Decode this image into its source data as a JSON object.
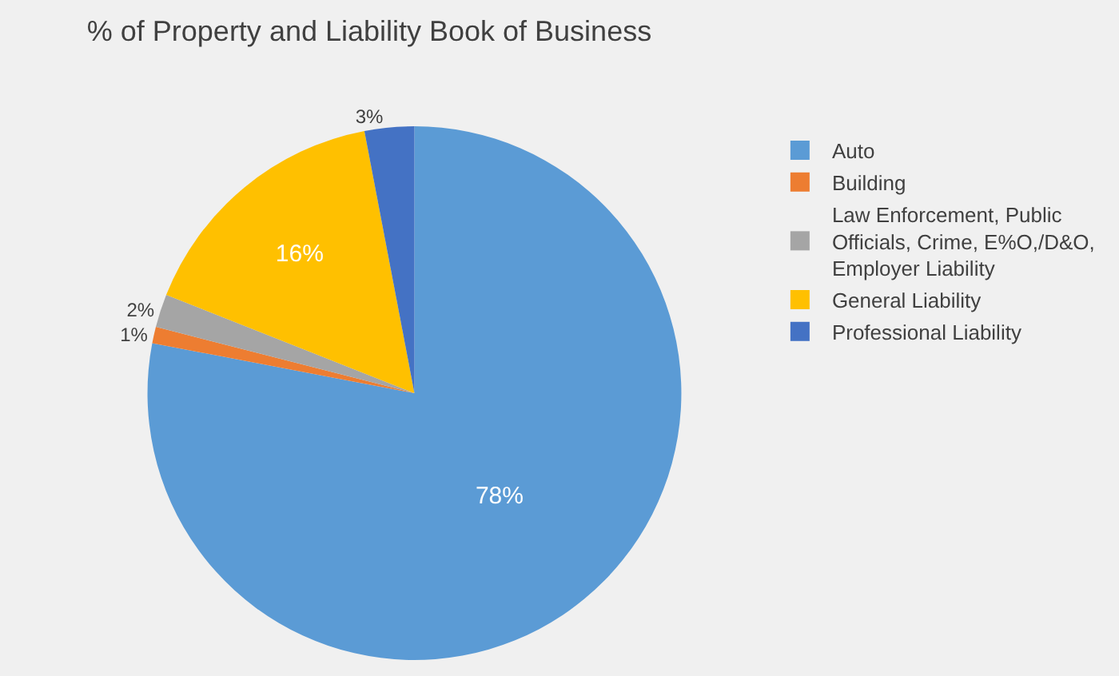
{
  "chart_data": {
    "type": "pie",
    "title": "% of Property and Liability Book of Business",
    "categories": [
      "Auto",
      "Building",
      "Law Enforcement, Public Officials, Crime, E%O,/D&O, Employer Liability",
      "General Liability",
      "Professional Liability"
    ],
    "values": [
      78,
      1,
      2,
      16,
      3
    ],
    "colors": [
      "#5b9bd5",
      "#ed7d31",
      "#a5a5a5",
      "#ffc000",
      "#4472c4"
    ],
    "value_labels": [
      "78%",
      "1%",
      "2%",
      "16%",
      "3%"
    ],
    "legend": "right"
  }
}
